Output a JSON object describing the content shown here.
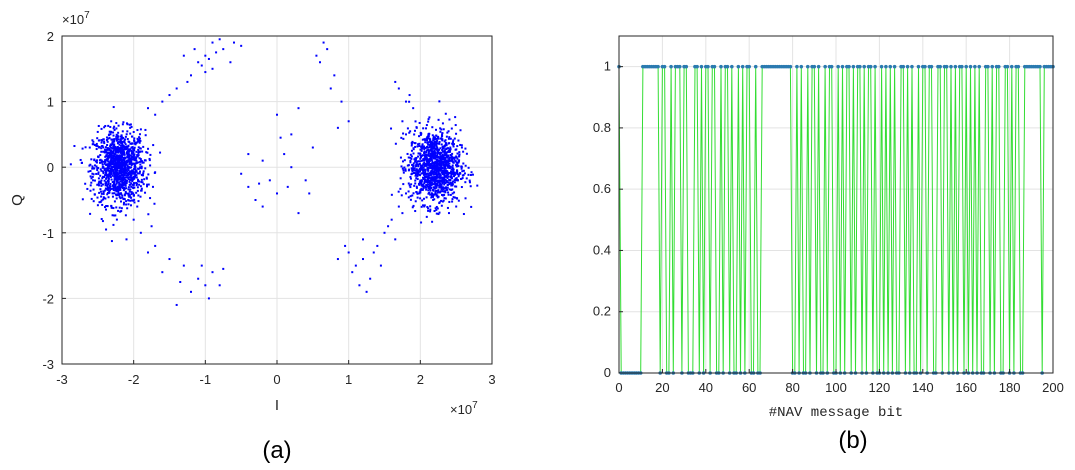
{
  "chart_data": [
    {
      "type": "scatter",
      "panel_label": "(a)",
      "xlabel": "I",
      "ylabel": "Q",
      "x_exponent_label": "×10",
      "x_exponent_power": "7",
      "y_exponent_label": "×10",
      "y_exponent_power": "7",
      "xlim": [
        -3,
        3
      ],
      "ylim": [
        -3,
        2
      ],
      "xticks": [
        -3,
        -2,
        -1,
        0,
        1,
        2,
        3
      ],
      "xtick_labels": [
        "-3",
        "-2",
        "-1",
        "0",
        "1",
        "2",
        "3"
      ],
      "yticks": [
        -3,
        -2,
        -1,
        0,
        1,
        2
      ],
      "ytick_labels": [
        "-3",
        "-2",
        "-1",
        "0",
        "1",
        "2"
      ],
      "grid": true,
      "marker_color": "#0000ff",
      "clusters": [
        {
          "center": [
            -2.2,
            0.0
          ],
          "spread": [
            0.18,
            0.28
          ],
          "count": 1200
        },
        {
          "center": [
            2.2,
            0.0
          ],
          "spread": [
            0.18,
            0.28
          ],
          "count": 1200
        }
      ],
      "transition_points": [
        [
          -1.3,
          1.7
        ],
        [
          -1.1,
          1.6
        ],
        [
          -1.0,
          1.7
        ],
        [
          -0.9,
          1.5
        ],
        [
          -1.2,
          1.4
        ],
        [
          -1.5,
          1.1
        ],
        [
          -1.6,
          1.0
        ],
        [
          -1.8,
          0.9
        ],
        [
          -0.95,
          1.65
        ],
        [
          -0.85,
          1.75
        ],
        [
          -1.05,
          1.55
        ],
        [
          -0.8,
          1.95
        ],
        [
          -0.75,
          1.8
        ],
        [
          -1.4,
          1.2
        ],
        [
          -1.7,
          0.8
        ],
        [
          -0.6,
          1.9
        ],
        [
          -0.5,
          1.85
        ],
        [
          -1.15,
          1.8
        ],
        [
          -0.9,
          1.9
        ],
        [
          -1.0,
          1.45
        ],
        [
          -1.25,
          1.3
        ],
        [
          -0.65,
          1.6
        ],
        [
          -2.0,
          -0.8
        ],
        [
          -1.9,
          -1.0
        ],
        [
          -1.7,
          -1.2
        ],
        [
          -1.5,
          -1.4
        ],
        [
          -1.3,
          -1.5
        ],
        [
          -1.1,
          -1.7
        ],
        [
          -1.0,
          -1.8
        ],
        [
          -0.9,
          -1.6
        ],
        [
          -0.8,
          -1.8
        ],
        [
          -1.2,
          -1.9
        ],
        [
          -1.4,
          -2.1
        ],
        [
          -1.6,
          -1.6
        ],
        [
          -1.8,
          -1.3
        ],
        [
          -2.1,
          -1.1
        ],
        [
          -1.95,
          -0.6
        ],
        [
          -1.75,
          -0.9
        ],
        [
          -0.75,
          -1.55
        ],
        [
          -1.05,
          -1.5
        ],
        [
          -1.35,
          -1.75
        ],
        [
          -0.95,
          -2.0
        ],
        [
          -0.5,
          -0.1
        ],
        [
          -0.4,
          -0.3
        ],
        [
          -0.3,
          -0.5
        ],
        [
          -0.2,
          -0.6
        ],
        [
          -0.1,
          -0.2
        ],
        [
          0.0,
          -0.4
        ],
        [
          0.1,
          0.2
        ],
        [
          0.2,
          0.5
        ],
        [
          0.3,
          0.9
        ],
        [
          0.0,
          0.8
        ],
        [
          -0.2,
          0.1
        ],
        [
          -0.4,
          0.2
        ],
        [
          0.15,
          -0.3
        ],
        [
          0.4,
          -0.2
        ],
        [
          0.5,
          0.3
        ],
        [
          0.6,
          1.6
        ],
        [
          0.7,
          1.8
        ],
        [
          0.8,
          1.4
        ],
        [
          0.9,
          1.0
        ],
        [
          1.0,
          0.7
        ],
        [
          0.75,
          1.2
        ],
        [
          0.65,
          1.9
        ],
        [
          0.55,
          1.7
        ],
        [
          0.85,
          0.6
        ],
        [
          0.3,
          -0.7
        ],
        [
          0.45,
          -0.4
        ],
        [
          0.2,
          0.0
        ],
        [
          -0.25,
          -0.25
        ],
        [
          0.05,
          0.45
        ],
        [
          1.0,
          -1.3
        ],
        [
          1.1,
          -1.5
        ],
        [
          1.2,
          -1.4
        ],
        [
          1.3,
          -1.7
        ],
        [
          1.15,
          -1.8
        ],
        [
          1.4,
          -1.2
        ],
        [
          1.5,
          -1.0
        ],
        [
          1.6,
          -0.8
        ],
        [
          1.7,
          -0.6
        ],
        [
          1.8,
          -0.4
        ],
        [
          1.05,
          -1.6
        ],
        [
          1.25,
          -1.9
        ],
        [
          1.35,
          -1.3
        ],
        [
          1.55,
          -0.9
        ],
        [
          1.65,
          -1.1
        ],
        [
          0.85,
          -1.4
        ],
        [
          0.95,
          -1.2
        ],
        [
          1.75,
          -0.7
        ],
        [
          1.45,
          -1.5
        ],
        [
          1.2,
          -1.1
        ],
        [
          1.8,
          1.0
        ],
        [
          1.7,
          1.2
        ],
        [
          1.9,
          0.9
        ],
        [
          1.75,
          0.7
        ],
        [
          1.85,
          1.1
        ],
        [
          1.95,
          0.6
        ],
        [
          1.65,
          1.3
        ],
        [
          1.8,
          0.5
        ]
      ]
    },
    {
      "type": "line",
      "panel_label": "(b)",
      "xlabel": "#NAV message bit",
      "ylabel": "",
      "xlim": [
        0,
        200
      ],
      "ylim": [
        0,
        1.1
      ],
      "xticks": [
        0,
        20,
        40,
        60,
        80,
        100,
        120,
        140,
        160,
        180,
        200
      ],
      "xtick_labels": [
        "0",
        "20",
        "40",
        "60",
        "80",
        "100",
        "120",
        "140",
        "160",
        "180",
        "200"
      ],
      "yticks": [
        0,
        0.2,
        0.4,
        0.6,
        0.8,
        1
      ],
      "ytick_labels": [
        "0",
        "0.2",
        "0.4",
        "0.6",
        "0.8",
        "1"
      ],
      "grid": true,
      "line_color": "#33dd33",
      "marker_color": "#2a7ab0",
      "x": [
        0,
        1,
        2,
        3,
        4,
        5,
        6,
        7,
        8,
        9,
        10,
        11,
        12,
        13,
        14,
        15,
        16,
        17,
        18,
        19,
        20,
        21,
        22,
        23,
        24,
        25,
        26,
        27,
        28,
        29,
        30,
        31,
        32,
        33,
        34,
        35,
        36,
        37,
        38,
        39,
        40,
        41,
        42,
        43,
        44,
        45,
        46,
        47,
        48,
        49,
        50,
        51,
        52,
        53,
        54,
        55,
        56,
        57,
        58,
        59,
        60,
        61,
        62,
        63,
        64,
        65,
        66,
        67,
        68,
        69,
        70,
        71,
        72,
        73,
        74,
        75,
        76,
        77,
        78,
        79,
        80,
        81,
        82,
        83,
        84,
        85,
        86,
        87,
        88,
        89,
        90,
        91,
        92,
        93,
        94,
        95,
        96,
        97,
        98,
        99,
        100,
        101,
        102,
        103,
        104,
        105,
        106,
        107,
        108,
        109,
        110,
        111,
        112,
        113,
        114,
        115,
        116,
        117,
        118,
        119,
        120,
        121,
        122,
        123,
        124,
        125,
        126,
        127,
        128,
        129,
        130,
        131,
        132,
        133,
        134,
        135,
        136,
        137,
        138,
        139,
        140,
        141,
        142,
        143,
        144,
        145,
        146,
        147,
        148,
        149,
        150,
        151,
        152,
        153,
        154,
        155,
        156,
        157,
        158,
        159,
        160,
        161,
        162,
        163,
        164,
        165,
        166,
        167,
        168,
        169,
        170,
        171,
        172,
        173,
        174,
        175,
        176,
        177,
        178,
        179,
        180,
        181,
        182,
        183,
        184,
        185,
        186,
        187,
        188,
        189,
        190,
        191,
        192,
        193,
        194,
        195,
        196,
        197,
        198,
        199,
        200
      ],
      "y": [
        1,
        0,
        0,
        0,
        0,
        0,
        0,
        0,
        0,
        0,
        0,
        1,
        1,
        1,
        1,
        1,
        1,
        1,
        1,
        0,
        1,
        1,
        0,
        0,
        1,
        0,
        1,
        1,
        1,
        0,
        1,
        1,
        0,
        0,
        0,
        1,
        1,
        0,
        1,
        0,
        1,
        1,
        0,
        1,
        1,
        0,
        0,
        1,
        0,
        1,
        1,
        0,
        1,
        0,
        0,
        1,
        0,
        1,
        0,
        1,
        1,
        0,
        0,
        1,
        0,
        0,
        1,
        1,
        1,
        1,
        1,
        1,
        1,
        1,
        1,
        1,
        1,
        1,
        1,
        1,
        0,
        0,
        1,
        0,
        1,
        0,
        0,
        1,
        0,
        1,
        1,
        0,
        1,
        0,
        0,
        1,
        0,
        1,
        1,
        0,
        0,
        1,
        0,
        1,
        0,
        1,
        1,
        0,
        1,
        0,
        1,
        1,
        0,
        1,
        0,
        1,
        1,
        0,
        1,
        0,
        0,
        1,
        0,
        1,
        0,
        1,
        0,
        1,
        0,
        0,
        1,
        1,
        0,
        1,
        0,
        1,
        0,
        0,
        1,
        0,
        1,
        1,
        0,
        1,
        1,
        0,
        0,
        1,
        1,
        0,
        1,
        1,
        0,
        1,
        0,
        1,
        0,
        1,
        1,
        0,
        1,
        0,
        1,
        0,
        1,
        0,
        1,
        0,
        0,
        1,
        1,
        0,
        1,
        0,
        1,
        1,
        0,
        0,
        1,
        1,
        0,
        1,
        0,
        1,
        1,
        0,
        0,
        1,
        1,
        1,
        1,
        1,
        1,
        1,
        1,
        0,
        1,
        1,
        1,
        1,
        1
      ]
    }
  ]
}
